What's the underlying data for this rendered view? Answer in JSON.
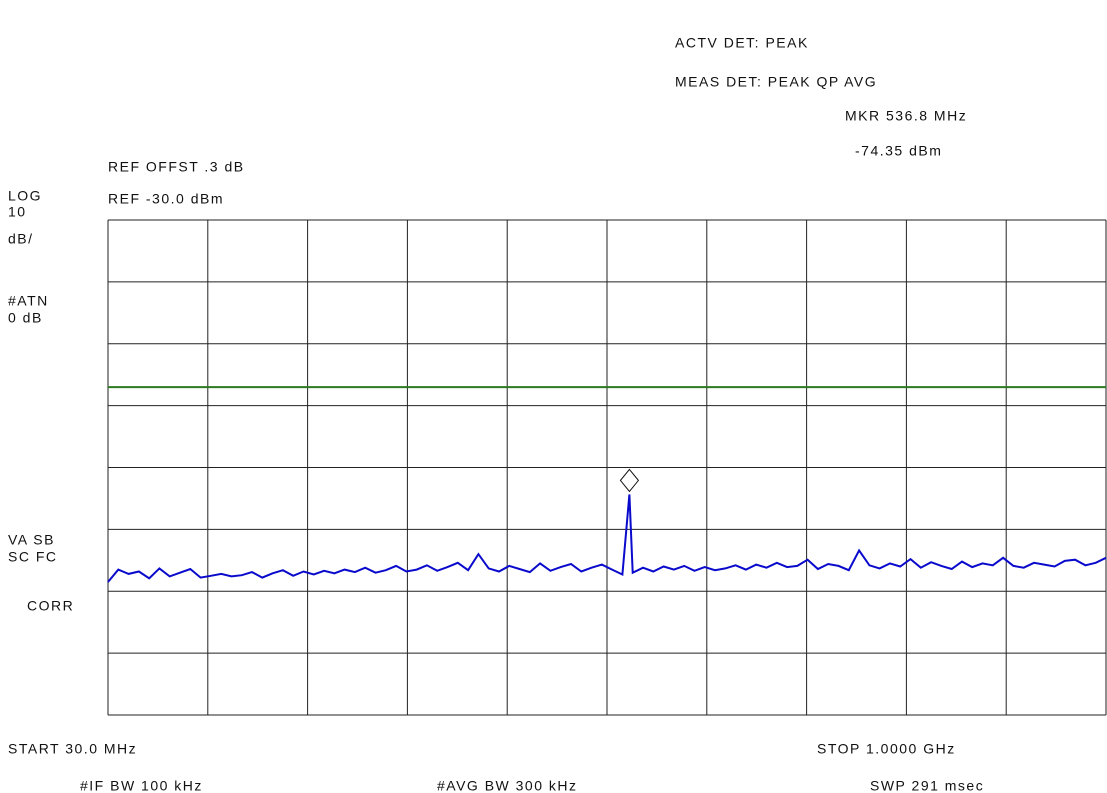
{
  "chart_data": {
    "type": "line",
    "header": {
      "detector": "ACTV DET: PEAK",
      "meas_detector": "MEAS DET: PEAK QP AVG",
      "marker_freq": "MKR 536.8 MHz",
      "marker_level": "-74.35 dBm"
    },
    "left_panel": {
      "ref_offset": "REF OFFST .3 dB",
      "ref_level": "REF -30.0 dBm",
      "scale_1": "LOG",
      "scale_2": "10",
      "scale_3": "dB/",
      "atten_1": "#ATN",
      "atten_2": "0 dB",
      "flags_1": "VA SB",
      "flags_2": "SC FC",
      "corr": "CORR"
    },
    "footer": {
      "start": "START 30.0 MHz",
      "stop": "STOP 1.0000 GHz",
      "if_bw": "#IF BW 100 kHz",
      "avg_bw": "#AVG BW 300 kHz",
      "sweep": "SWP 291 msec"
    },
    "x": [
      30,
      40,
      50,
      60,
      70,
      80,
      90,
      100,
      110,
      120,
      130,
      140,
      150,
      160,
      170,
      180,
      190,
      200,
      210,
      220,
      230,
      240,
      250,
      260,
      270,
      280,
      290,
      300,
      310,
      320,
      330,
      340,
      350,
      360,
      370,
      380,
      390,
      400,
      410,
      420,
      430,
      440,
      450,
      460,
      470,
      480,
      490,
      500,
      510,
      520,
      530,
      536.8,
      540,
      550,
      560,
      570,
      580,
      590,
      600,
      610,
      620,
      630,
      640,
      650,
      660,
      670,
      680,
      690,
      700,
      710,
      720,
      730,
      740,
      750,
      760,
      770,
      780,
      790,
      800,
      810,
      820,
      830,
      840,
      850,
      860,
      870,
      880,
      890,
      900,
      910,
      920,
      930,
      940,
      950,
      960,
      970,
      980,
      990,
      1000
    ],
    "series": [
      {
        "color": "#0a0acc",
        "values": [
          -88.5,
          -86.5,
          -87.2,
          -86.8,
          -87.9,
          -86.3,
          -87.6,
          -87,
          -86.4,
          -87.8,
          -87.5,
          -87.2,
          -87.6,
          -87.4,
          -86.9,
          -87.8,
          -87.1,
          -86.6,
          -87.5,
          -86.8,
          -87.3,
          -86.7,
          -87.1,
          -86.5,
          -86.9,
          -86.2,
          -87,
          -86.6,
          -85.9,
          -86.8,
          -86.5,
          -85.8,
          -86.7,
          -86.1,
          -85.4,
          -86.6,
          -84,
          -86.3,
          -86.8,
          -85.9,
          -86.4,
          -86.9,
          -85.5,
          -86.7,
          -86.1,
          -85.6,
          -86.8,
          -86.2,
          -85.7,
          -86.5,
          -87.3,
          -74.35,
          -87,
          -86.2,
          -86.8,
          -86,
          -86.5,
          -85.9,
          -86.7,
          -86.1,
          -86.6,
          -86.3,
          -85.8,
          -86.5,
          -85.7,
          -86.2,
          -85.4,
          -86.1,
          -85.9,
          -84.9,
          -86.4,
          -85.6,
          -85.9,
          -86.6,
          -83.4,
          -85.8,
          -86.3,
          -85.5,
          -86,
          -84.8,
          -86.2,
          -85.3,
          -85.9,
          -86.4,
          -85.2,
          -86.1,
          -85.5,
          -85.8,
          -84.6,
          -85.9,
          -86.2,
          -85.4,
          -85.7,
          -86,
          -85.1,
          -84.9,
          -85.8,
          -85.4,
          -84.6
        ]
      }
    ],
    "xlim": [
      30,
      1000
    ],
    "ylim": [
      -110,
      -30
    ],
    "xticks": [
      30,
      127,
      224,
      321,
      418,
      515,
      612,
      709,
      806,
      903,
      1000
    ],
    "yticks": [
      -110,
      -100,
      -90,
      -80,
      -70,
      -60,
      -50,
      -40,
      -30
    ],
    "limit_line": {
      "value": -57,
      "color": "#2a7a1e"
    },
    "grid": true
  }
}
